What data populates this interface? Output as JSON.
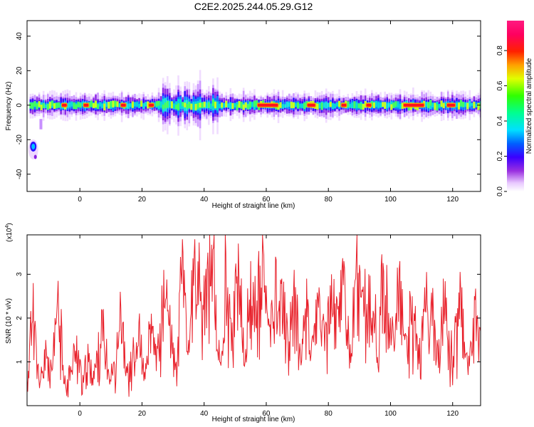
{
  "figure": {
    "title": "C2E2.2025.244.05.29.G12"
  },
  "chart_data": [
    {
      "type": "heatmap",
      "xlabel": "Height of straight line (km)",
      "ylabel": "Frequency (Hz)",
      "xlim": [
        -17,
        129
      ],
      "ylim": [
        -50,
        49
      ],
      "xticks": [
        0,
        20,
        40,
        60,
        80,
        100,
        120
      ],
      "yticks": [
        -40,
        -20,
        0,
        20,
        40
      ],
      "colorbar": {
        "label": "Normalized spectral amplitude",
        "range": [
          0,
          0.97
        ],
        "ticks": [
          0.0,
          0.2,
          0.4,
          0.6,
          0.8
        ],
        "colormap": "rainbow (white-magenta-purple-blue-cyan-green-yellow-orange-red-pink)"
      },
      "features": [
        {
          "name": "main band",
          "x_range": [
            -16,
            129
          ],
          "frequency_center": 0,
          "frequency_halfwidth": 4
        },
        {
          "name": "wider band",
          "x_range": [
            25,
            45
          ],
          "frequency_halfwidth": 10
        },
        {
          "name": "detached blob",
          "x": -15,
          "frequency": -24
        }
      ],
      "grid": false
    },
    {
      "type": "line",
      "xlabel": "Height of straight line (km)",
      "ylabel": "SNR (10 * v/v)",
      "y_multiplier_label": "(x10",
      "y_multiplier_exp": "4",
      "y_multiplier_close": ")",
      "xlim": [
        -17,
        129
      ],
      "ylim": [
        0,
        3.9
      ],
      "xticks": [
        0,
        20,
        40,
        60,
        80,
        100,
        120
      ],
      "yticks": [
        1,
        2,
        3
      ],
      "series": [
        {
          "color": "#e8202a",
          "x": [
            -17,
            -15,
            -13,
            -11,
            -9,
            -7,
            -5,
            -3,
            -1,
            1,
            3,
            5,
            7,
            9,
            11,
            13,
            15,
            17,
            19,
            21,
            23,
            25,
            27,
            29,
            31,
            33,
            35,
            37,
            39,
            41,
            43,
            45,
            47,
            49,
            51,
            53,
            55,
            57,
            59,
            61,
            63,
            65,
            67,
            69,
            71,
            73,
            75,
            77,
            79,
            81,
            83,
            85,
            87,
            89,
            91,
            93,
            95,
            97,
            99,
            101,
            103,
            105,
            107,
            109,
            111,
            113,
            115,
            117,
            119,
            121,
            123,
            125,
            127,
            129
          ],
          "y": [
            0.6,
            2.8,
            0.4,
            1.5,
            0.8,
            2.85,
            0.5,
            0.9,
            1.6,
            0.7,
            1.2,
            0.9,
            2.2,
            0.8,
            1.0,
            2.6,
            0.9,
            1.1,
            1.9,
            0.6,
            2.1,
            1.3,
            3.1,
            2.3,
            1.0,
            3.8,
            1.5,
            3.8,
            2.6,
            3.2,
            3.6,
            1.0,
            3.5,
            1.9,
            3.7,
            0.9,
            3.3,
            2.4,
            3.6,
            1.8,
            3.4,
            2.9,
            1.5,
            3.1,
            1.2,
            2.9,
            1.6,
            2.7,
            1.8,
            3.0,
            2.2,
            3.3,
            1.4,
            3.4,
            2.6,
            3.0,
            1.9,
            3.2,
            2.4,
            1.5,
            3.3,
            1.6,
            2.5,
            1.4,
            2.7,
            2.3,
            1.5,
            2.9,
            1.2,
            1.9,
            2.7,
            0.7,
            2.5,
            1.7
          ]
        }
      ],
      "grid": false
    }
  ]
}
